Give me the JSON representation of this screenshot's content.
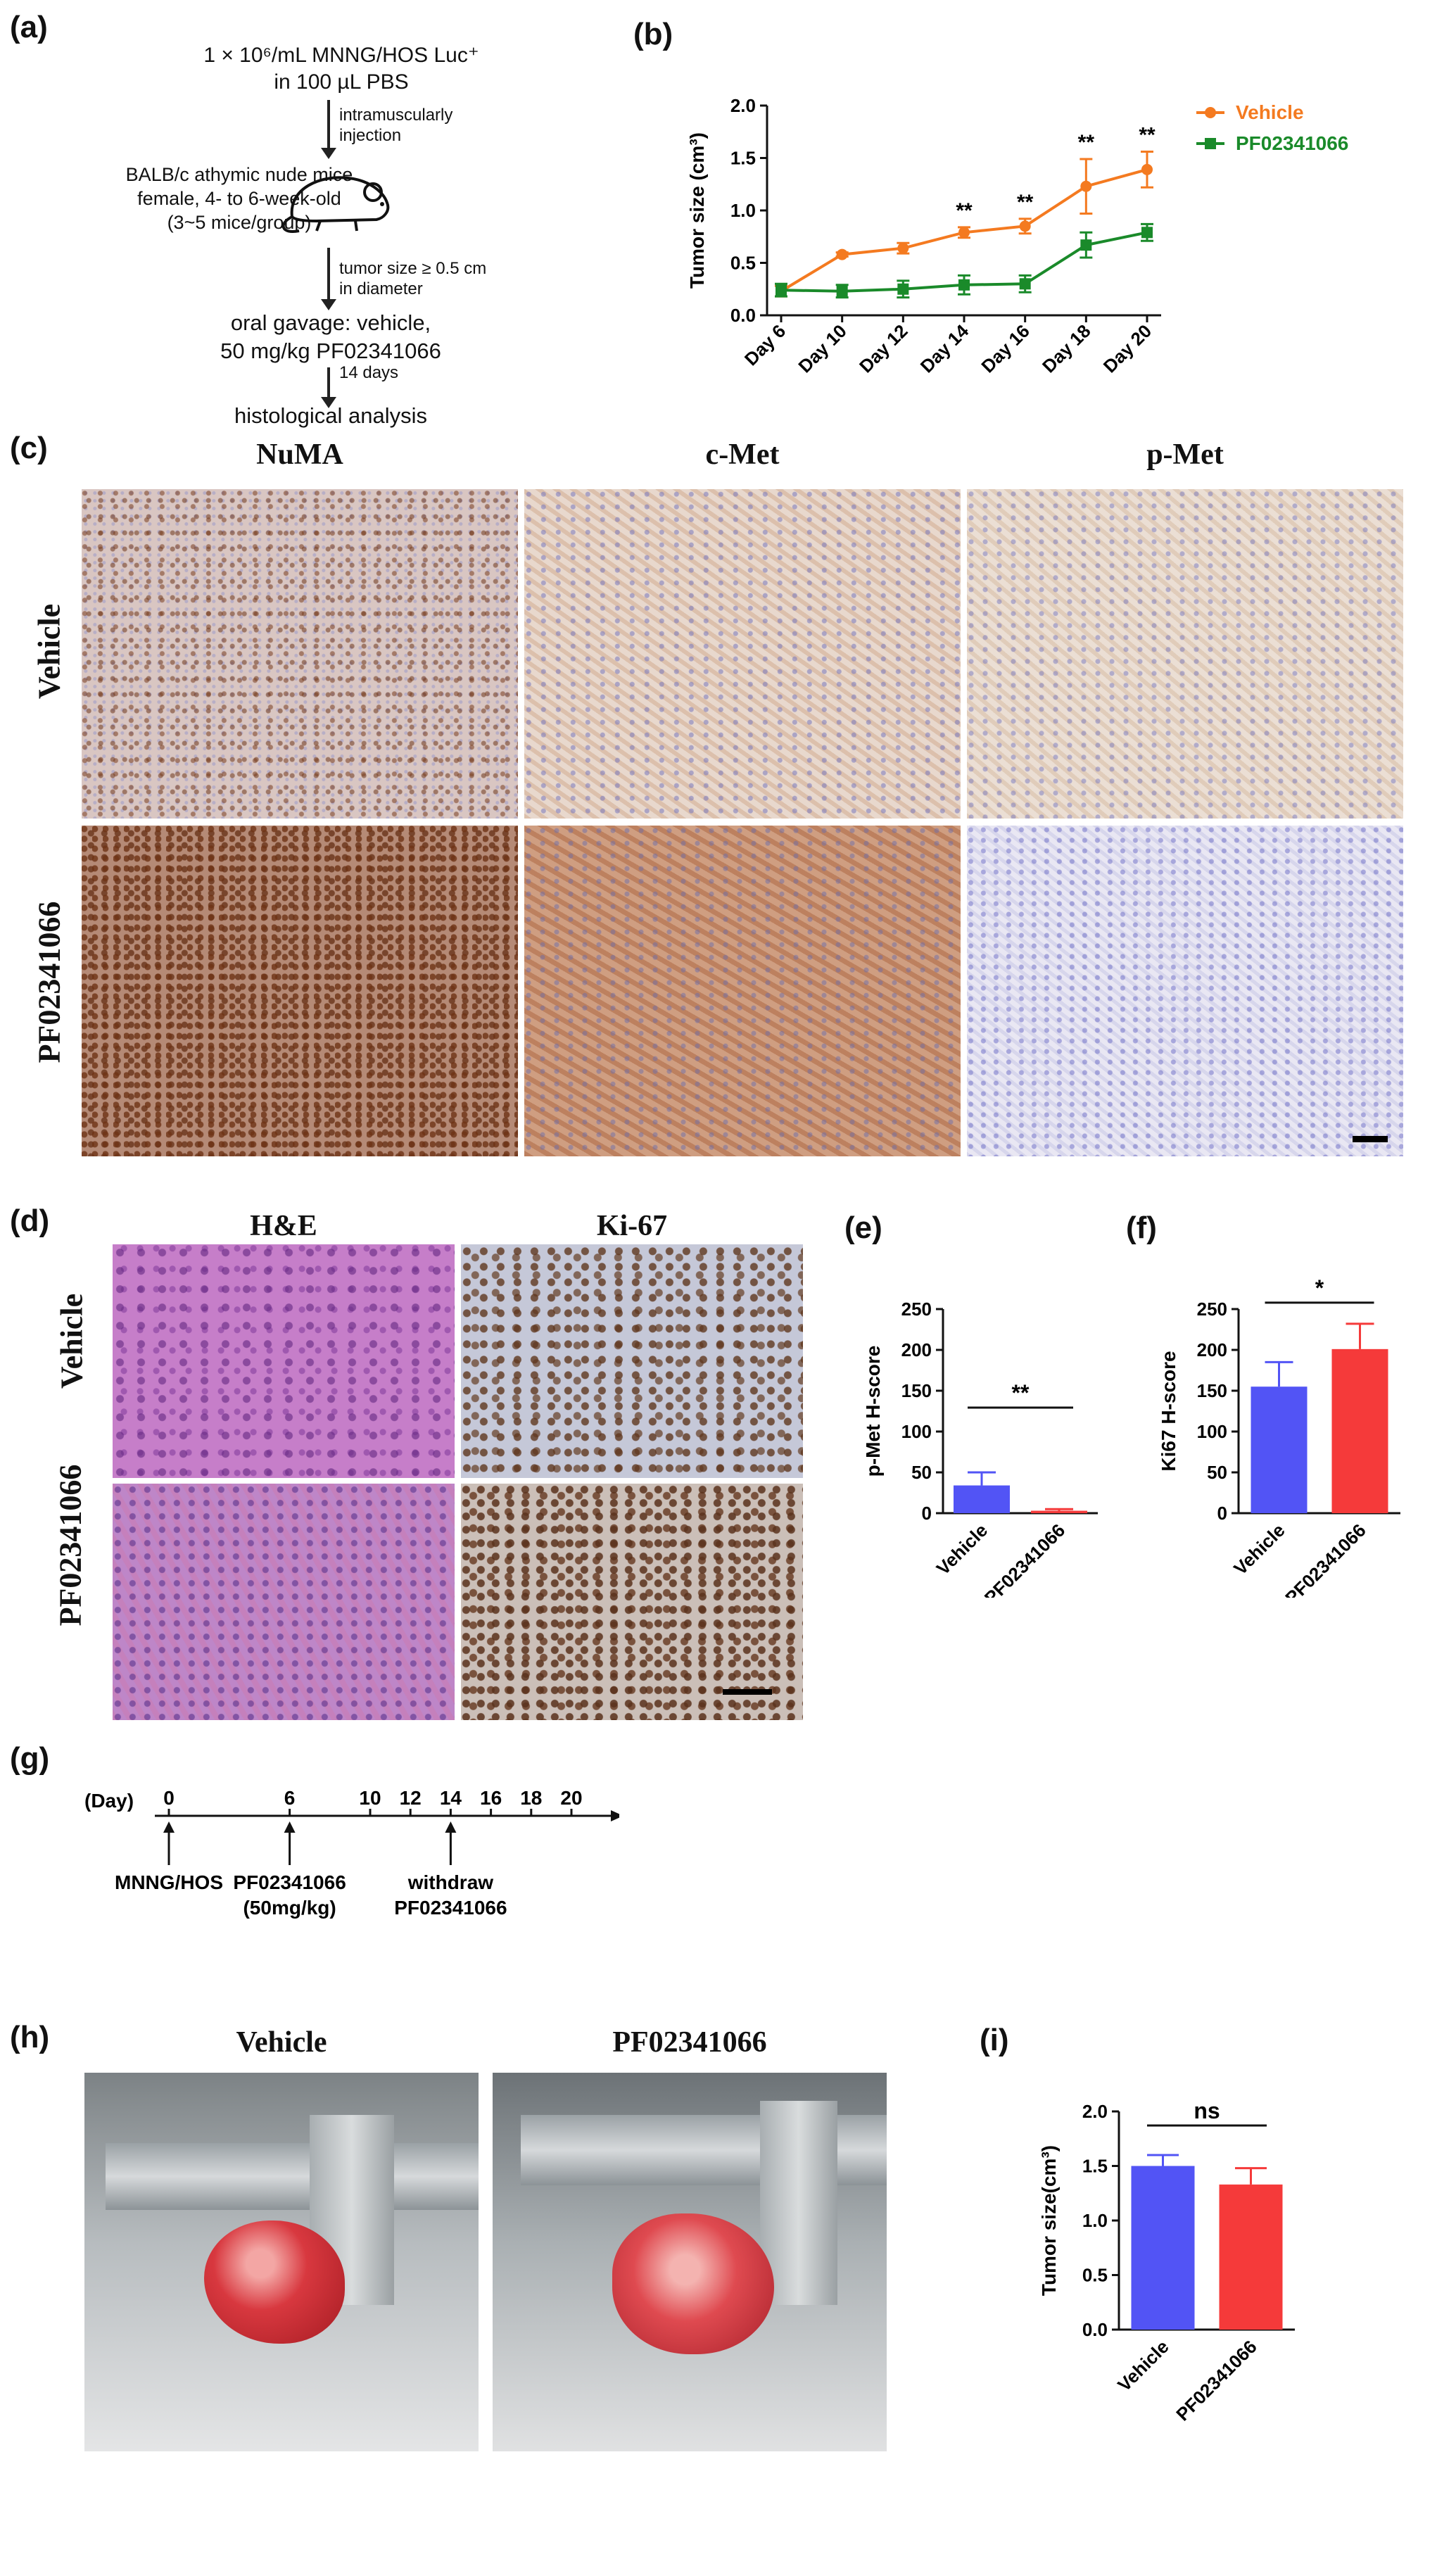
{
  "panel_labels": {
    "a": "(a)",
    "b": "(b)",
    "c": "(c)",
    "d": "(d)",
    "e": "(e)",
    "f": "(f)",
    "g": "(g)",
    "h": "(h)",
    "i": "(i)"
  },
  "panel_a": {
    "line1": "1 × 10⁶/mL MNNG/HOS Luc⁺",
    "line2": "in 100 µL PBS",
    "step1": "intramuscularly injection",
    "mice_line1": "BALB/c athymic nude mice",
    "mice_line2": "female, 4- to 6-week-old",
    "mice_line3": "(3~5 mice/group)",
    "step2": "tumor size ≥ 0.5 cm in diameter",
    "gavage_line1": "oral gavage: vehicle,",
    "gavage_line2": "50 mg/kg PF02341066",
    "step3": "14 days",
    "final": "histological analysis"
  },
  "panel_c": {
    "columns": [
      "NuMA",
      "c-Met",
      "p-Met"
    ],
    "rows": [
      "Vehicle",
      "PF02341066"
    ]
  },
  "panel_d": {
    "columns": [
      "H&E",
      "Ki-67"
    ],
    "rows": [
      "Vehicle",
      "PF02341066"
    ]
  },
  "panel_g": {
    "day_label": "(Day)",
    "ticks": [
      "0",
      "6",
      "10",
      "12",
      "14",
      "16",
      "18",
      "20"
    ],
    "events": [
      {
        "day": "0",
        "label1": "MNNG/HOS",
        "label2": ""
      },
      {
        "day": "6",
        "label1": "PF02341066",
        "label2": "(50mg/kg)"
      },
      {
        "day": "14",
        "label1": "withdraw",
        "label2": "PF02341066"
      }
    ]
  },
  "panel_h": {
    "columns": [
      "Vehicle",
      "PF02341066"
    ]
  },
  "colors": {
    "vehicle_line": "#f47a20",
    "pf_line": "#1a8a2a",
    "vehicle_bar": "#5254f5",
    "pf_bar": "#f53a3a"
  },
  "chart_data": [
    {
      "id": "b",
      "type": "line",
      "ylabel": "Tumor size (cm³)",
      "ylim": [
        0,
        2.0
      ],
      "yticks": [
        "0.0",
        "0.5",
        "1.0",
        "1.5",
        "2.0"
      ],
      "categories": [
        "Day 6",
        "Day 10",
        "Day 12",
        "Day 14",
        "Day 16",
        "Day 18",
        "Day 20"
      ],
      "legend_position": "top-right",
      "series": [
        {
          "name": "Vehicle",
          "color": "#f47a20",
          "marker": "circle",
          "values": [
            0.23,
            0.58,
            0.64,
            0.79,
            0.85,
            1.23,
            1.39
          ],
          "errors": [
            0.05,
            0.02,
            0.05,
            0.05,
            0.07,
            0.26,
            0.17
          ]
        },
        {
          "name": "PF02341066",
          "color": "#1a8a2a",
          "marker": "square",
          "values": [
            0.24,
            0.23,
            0.25,
            0.29,
            0.3,
            0.67,
            0.79
          ],
          "errors": [
            0.06,
            0.06,
            0.08,
            0.09,
            0.08,
            0.12,
            0.08
          ]
        }
      ],
      "significance": [
        {
          "category": "Day 14",
          "label": "**"
        },
        {
          "category": "Day 16",
          "label": "**"
        },
        {
          "category": "Day 18",
          "label": "**"
        },
        {
          "category": "Day 20",
          "label": "**"
        }
      ]
    },
    {
      "id": "e",
      "type": "bar",
      "ylabel": "p-Met H-score",
      "ylim": [
        0,
        250
      ],
      "yticks": [
        "0",
        "50",
        "100",
        "150",
        "200",
        "250"
      ],
      "categories": [
        "Vehicle",
        "PF02341066"
      ],
      "values": [
        34,
        3
      ],
      "errors": [
        16,
        2
      ],
      "significance": "**"
    },
    {
      "id": "f",
      "type": "bar",
      "ylabel": "Ki67 H-score",
      "ylim": [
        0,
        250
      ],
      "yticks": [
        "0",
        "50",
        "100",
        "150",
        "200",
        "250"
      ],
      "categories": [
        "Vehicle",
        "PF02341066"
      ],
      "values": [
        155,
        201
      ],
      "errors": [
        30,
        31
      ],
      "significance": "*"
    },
    {
      "id": "i",
      "type": "bar",
      "ylabel": "Tumor size(cm³)",
      "ylim": [
        0,
        2.0
      ],
      "yticks": [
        "0.0",
        "0.5",
        "1.0",
        "1.5",
        "2.0"
      ],
      "categories": [
        "Vehicle",
        "PF02341066"
      ],
      "values": [
        1.5,
        1.33
      ],
      "errors": [
        0.1,
        0.15
      ],
      "significance": "ns"
    }
  ]
}
